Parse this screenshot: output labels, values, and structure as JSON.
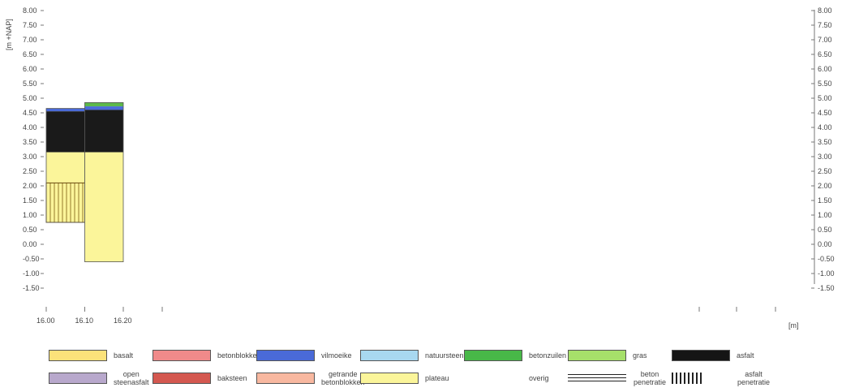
{
  "chart_data": {
    "type": "diagram",
    "ylabel": "[m +NAP]",
    "xlabel": "[m]",
    "y_ticks": [
      "8.00",
      "7.50",
      "7.00",
      "6.50",
      "6.00",
      "5.50",
      "5.00",
      "4.50",
      "4.00",
      "3.50",
      "3.00",
      "2.50",
      "2.00",
      "1.50",
      "1.00",
      "0.50",
      "0.00",
      "-0.50",
      "-1.00",
      "-1.50"
    ],
    "y_ticks_right": [
      "8.00",
      "7.50",
      "7.00",
      "6.50",
      "6.00",
      "5.50",
      "5.00",
      "4.50",
      "4.00",
      "3.50",
      "3.00",
      "2.50",
      "2.00",
      "1.50",
      "1.00",
      "0.50",
      "0.00",
      "-0.50",
      "-1.00",
      "-1.50"
    ],
    "x_ticks": [
      "16.00",
      "16.10",
      "16.20"
    ],
    "x_tick_values": [
      16.0,
      16.1,
      16.2
    ],
    "x_range": [
      16.0,
      16.2
    ],
    "y_range": [
      -1.5,
      8.0
    ],
    "columns": [
      {
        "x": [
          16.0,
          16.1
        ],
        "layers": [
          {
            "material": "blue",
            "top": 4.65,
            "bottom": 4.55
          },
          {
            "material": "asfalt",
            "top": 4.55,
            "bottom": 3.15
          },
          {
            "material": "plateau",
            "top": 3.15,
            "bottom": 2.1
          },
          {
            "material": "asfalt-penetratie",
            "top": 2.1,
            "bottom": 0.75
          }
        ]
      },
      {
        "x": [
          16.1,
          16.2
        ],
        "layers": [
          {
            "material": "green",
            "top": 4.85,
            "bottom": 4.72
          },
          {
            "material": "blue",
            "top": 4.72,
            "bottom": 4.6
          },
          {
            "material": "asfalt",
            "top": 4.6,
            "bottom": 3.15
          },
          {
            "material": "plateau",
            "top": 3.15,
            "bottom": -0.6
          }
        ]
      }
    ],
    "colors": {
      "asfalt": "#1a1a1a",
      "plateau": "#fbf59a",
      "blue": "#4a6ad8",
      "green": "#5cb84a"
    }
  },
  "legend": [
    [
      {
        "label": "basalt",
        "color": "#fbe27a"
      },
      {
        "label": "betonblokken",
        "color": "#f08a8a"
      },
      {
        "label": "vilmoeike",
        "color": "#4a6ad8"
      },
      {
        "label": "natuursteen",
        "color": "#a8d8f0"
      },
      {
        "label": "betonzuilen",
        "color": "#48b848"
      },
      {
        "label": "gras",
        "color": "#a6e06a"
      },
      {
        "label": "asfalt",
        "color": "#151515"
      }
    ],
    [
      {
        "label": "open steenasfalt",
        "color": "#b8a8cc"
      },
      {
        "label": "baksteen",
        "color": "#d45850"
      },
      {
        "label": "getrande betonblokken",
        "color": "#f8b8a0"
      },
      {
        "label": "plateau",
        "color": "#fbf59a"
      },
      {
        "label": "overig",
        "color": "#ffffff"
      },
      {
        "label": "beton penetratie",
        "color": "hlines"
      },
      {
        "label": "asfalt penetratie",
        "color": "vlines"
      }
    ]
  ]
}
